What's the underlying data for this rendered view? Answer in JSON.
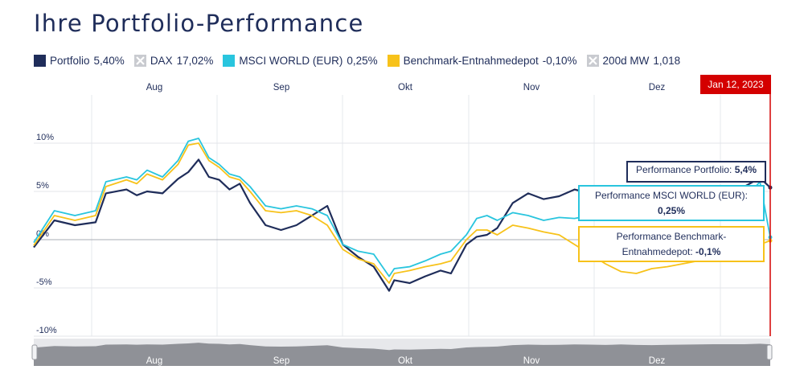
{
  "title": "Ihre Portfolio-Performance",
  "legend": [
    {
      "label": "Portfolio",
      "value": "5,40%",
      "color": "#1f2d5a",
      "enabled": true
    },
    {
      "label": "DAX",
      "value": "17,02%",
      "color": "#c9cbd0",
      "enabled": false
    },
    {
      "label": "MSCI WORLD (EUR)",
      "value": "0,25%",
      "color": "#29c5de",
      "enabled": true
    },
    {
      "label": "Benchmark-Entnahmedepot",
      "value": "-0,10%",
      "color": "#f7c21a",
      "enabled": true
    },
    {
      "label": "200d MW",
      "value": "1,018",
      "color": "#c9cbd0",
      "enabled": false
    }
  ],
  "date_flag": "Jan 12, 2023",
  "tooltips": {
    "portfolio": {
      "label": "Performance Portfolio:",
      "value": "5,4%"
    },
    "msci": {
      "label": "Performance MSCI WORLD (EUR):",
      "value": "0,25%"
    },
    "benchmark": {
      "label1": "Performance Benchmark-",
      "label2": "Entnahmedepot:",
      "value": "-0,1%"
    }
  },
  "chart_data": {
    "type": "line",
    "month_labels": [
      "Aug",
      "Sep",
      "Okt",
      "Nov",
      "Dez"
    ],
    "ylabel": "",
    "ylim": [
      -10,
      15
    ],
    "yticks": [
      10,
      5,
      0,
      -5,
      -10
    ],
    "ytick_labels": [
      "10%",
      "5%",
      "0%",
      "-5%",
      "-10%"
    ],
    "x_index": "trading days (0 = first visible day, 143 = Jan 12, 2023)",
    "series": [
      {
        "name": "Portfolio",
        "color": "#1f2d5a",
        "x": [
          0,
          4,
          8,
          12,
          14,
          18,
          20,
          22,
          25,
          28,
          30,
          32,
          34,
          36,
          38,
          40,
          42,
          45,
          48,
          51,
          54,
          57,
          60,
          63,
          66,
          69,
          70,
          73,
          76,
          79,
          81,
          84,
          86,
          88,
          90,
          93,
          96,
          99,
          102,
          105,
          108,
          111,
          114,
          117,
          120,
          123,
          126,
          129,
          132,
          135,
          138,
          141,
          143
        ],
        "y": [
          -0.8,
          2.0,
          1.5,
          1.8,
          4.8,
          5.2,
          4.6,
          5.0,
          4.8,
          6.3,
          7.0,
          8.3,
          6.5,
          6.2,
          5.2,
          5.8,
          3.8,
          1.5,
          1.0,
          1.5,
          2.5,
          3.5,
          -0.5,
          -1.8,
          -2.8,
          -5.3,
          -4.2,
          -4.5,
          -3.8,
          -3.2,
          -3.5,
          -0.5,
          0.3,
          0.5,
          1.2,
          3.8,
          4.8,
          4.2,
          4.5,
          5.2,
          4.8,
          4.2,
          5.0,
          4.2,
          3.8,
          4.5,
          4.8,
          5.2,
          5.5,
          5.5,
          5.5,
          6.4,
          5.4
        ]
      },
      {
        "name": "MSCI WORLD (EUR)",
        "color": "#29c5de",
        "x": [
          0,
          4,
          8,
          12,
          14,
          18,
          20,
          22,
          25,
          28,
          30,
          32,
          34,
          36,
          38,
          40,
          42,
          45,
          48,
          51,
          54,
          57,
          60,
          63,
          66,
          69,
          70,
          73,
          76,
          79,
          81,
          84,
          86,
          88,
          90,
          93,
          96,
          99,
          102,
          105,
          108,
          111,
          114,
          117,
          120,
          123,
          126,
          129,
          132,
          135,
          138,
          141,
          143
        ],
        "y": [
          -0.3,
          3.0,
          2.5,
          3.0,
          6.0,
          6.5,
          6.2,
          7.2,
          6.5,
          8.2,
          10.2,
          10.5,
          8.5,
          7.8,
          6.8,
          6.5,
          5.5,
          3.5,
          3.2,
          3.5,
          3.2,
          2.5,
          -0.5,
          -1.2,
          -1.5,
          -3.8,
          -3.0,
          -2.8,
          -2.2,
          -1.5,
          -1.2,
          0.5,
          2.2,
          2.5,
          2.0,
          2.8,
          2.5,
          2.0,
          2.3,
          2.2,
          2.5,
          2.8,
          3.2,
          2.5,
          2.0,
          2.3,
          2.8,
          3.2,
          3.5,
          3.8,
          4.2,
          6.0,
          0.25
        ]
      },
      {
        "name": "Benchmark-Entnahmedepot",
        "color": "#f7c21a",
        "x": [
          0,
          4,
          8,
          12,
          14,
          18,
          20,
          22,
          25,
          28,
          30,
          32,
          34,
          36,
          38,
          40,
          42,
          45,
          48,
          51,
          54,
          57,
          60,
          63,
          66,
          69,
          70,
          73,
          76,
          79,
          81,
          84,
          86,
          88,
          90,
          93,
          96,
          99,
          102,
          105,
          108,
          111,
          114,
          117,
          120,
          123,
          126,
          129,
          132,
          135,
          138,
          141,
          143
        ],
        "y": [
          -0.6,
          2.5,
          2.0,
          2.5,
          5.5,
          6.2,
          5.8,
          6.8,
          6.2,
          7.8,
          9.8,
          10.0,
          8.2,
          7.5,
          6.5,
          6.2,
          5.0,
          3.0,
          2.8,
          3.0,
          2.5,
          1.5,
          -1.0,
          -2.0,
          -2.5,
          -4.5,
          -3.5,
          -3.2,
          -2.8,
          -2.5,
          -2.2,
          0.0,
          1.0,
          1.0,
          0.5,
          1.5,
          1.2,
          0.8,
          0.5,
          -0.5,
          -1.5,
          -2.5,
          -3.3,
          -3.5,
          -3.0,
          -2.8,
          -2.5,
          -2.2,
          -2.0,
          -2.2,
          -2.0,
          -0.5,
          -0.1
        ]
      }
    ],
    "navigator": {
      "month_labels": [
        "Aug",
        "Sep",
        "Okt",
        "Nov",
        "Dez"
      ]
    },
    "grid": true,
    "legend_position": "top-left"
  }
}
